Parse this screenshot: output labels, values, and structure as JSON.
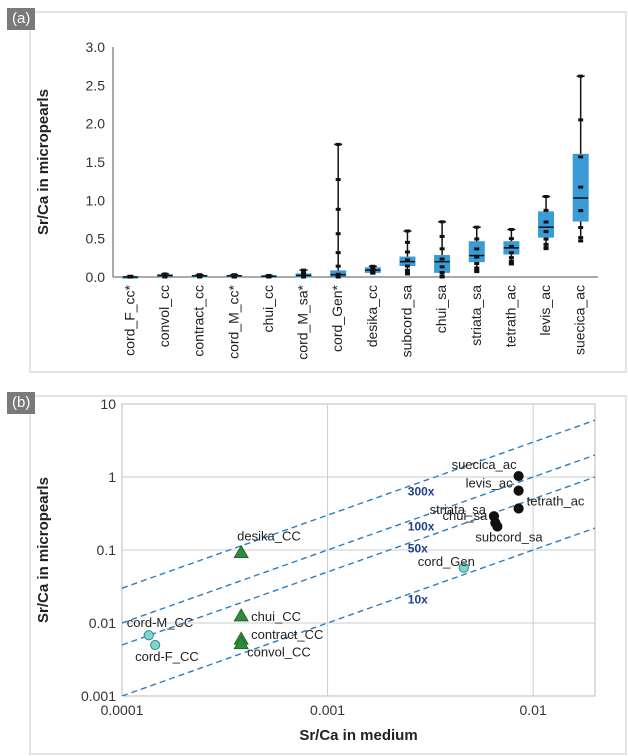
{
  "chart_data": [
    {
      "panel_label": "(a)",
      "type": "box",
      "ylabel": "Sr/Ca in micropearls",
      "ylim": [
        0,
        3.0
      ],
      "yticks": [
        "0.0",
        "0.5",
        "1.0",
        "1.5",
        "2.0",
        "2.5",
        "3.0"
      ],
      "grid": false,
      "color": "#3b9bd6",
      "categories": [
        "cord_F_cc*",
        "convol_cc",
        "contract_cc",
        "cord_M_cc*",
        "chui_cc",
        "cord_M_sa*",
        "cord_Gen*",
        "desika_cc",
        "subcord_sa",
        "chui_sa",
        "striata_sa",
        "tetrath_ac",
        "levis_ac",
        "suecica_ac"
      ],
      "boxes": [
        {
          "min": 0.0,
          "q1": 0.0,
          "median": 0.0,
          "q3": 0.005,
          "max": 0.01
        },
        {
          "min": 0.0,
          "q1": 0.01,
          "median": 0.02,
          "q3": 0.03,
          "max": 0.04
        },
        {
          "min": 0.0,
          "q1": 0.01,
          "median": 0.015,
          "q3": 0.02,
          "max": 0.03
        },
        {
          "min": 0.0,
          "q1": 0.01,
          "median": 0.015,
          "q3": 0.02,
          "max": 0.03
        },
        {
          "min": 0.0,
          "q1": 0.005,
          "median": 0.01,
          "q3": 0.015,
          "max": 0.02
        },
        {
          "min": 0.0,
          "q1": 0.0,
          "median": 0.02,
          "q3": 0.04,
          "max": 0.09
        },
        {
          "min": 0.0,
          "q1": 0.01,
          "median": 0.03,
          "q3": 0.08,
          "max": 1.73
        },
        {
          "min": 0.05,
          "q1": 0.06,
          "median": 0.09,
          "q3": 0.12,
          "max": 0.14
        },
        {
          "min": 0.04,
          "q1": 0.15,
          "median": 0.2,
          "q3": 0.26,
          "max": 0.6
        },
        {
          "min": 0.0,
          "q1": 0.06,
          "median": 0.2,
          "q3": 0.28,
          "max": 0.72
        },
        {
          "min": 0.07,
          "q1": 0.2,
          "median": 0.28,
          "q3": 0.46,
          "max": 0.65
        },
        {
          "min": 0.17,
          "q1": 0.3,
          "median": 0.38,
          "q3": 0.46,
          "max": 0.62
        },
        {
          "min": 0.37,
          "q1": 0.52,
          "median": 0.65,
          "q3": 0.85,
          "max": 1.05
        },
        {
          "min": 0.47,
          "q1": 0.73,
          "median": 1.03,
          "q3": 1.6,
          "max": 2.62
        }
      ]
    },
    {
      "panel_label": "(b)",
      "type": "scatter",
      "xlabel": "Sr/Ca in medium",
      "ylabel": "Sr/Ca in micropearls",
      "xscale": "log",
      "yscale": "log",
      "xlim": [
        0.0001,
        0.02
      ],
      "ylim": [
        0.001,
        10
      ],
      "xticks": [
        "0.0001",
        "0.001",
        "0.01"
      ],
      "yticks": [
        "0.001",
        "0.01",
        "0.1",
        "1",
        "10"
      ],
      "grid": true,
      "reference_lines": [
        {
          "label": "300x",
          "factor": 300
        },
        {
          "label": "100x",
          "factor": 100
        },
        {
          "label": "50x",
          "factor": 50
        },
        {
          "label": "10x",
          "factor": 10
        }
      ],
      "series": [
        {
          "marker": "triangle",
          "color": "#2e8b3a",
          "points": [
            {
              "label": "desika_CC",
              "x": 0.00038,
              "y": 0.092
            },
            {
              "label": "chui_CC",
              "x": 0.00038,
              "y": 0.0125
            },
            {
              "label": "contract_CC",
              "x": 0.00038,
              "y": 0.006
            },
            {
              "label": "convol_CC",
              "x": 0.00038,
              "y": 0.0052
            }
          ]
        },
        {
          "marker": "circle",
          "color": "#7fd3cf",
          "points": [
            {
              "label": "cord-M_CC",
              "x": 0.000135,
              "y": 0.0068
            },
            {
              "label": "cord-F_CC",
              "x": 0.000145,
              "y": 0.005
            },
            {
              "label": "cord_Gen",
              "x": 0.0046,
              "y": 0.057
            }
          ]
        },
        {
          "marker": "circle",
          "color": "#111111",
          "points": [
            {
              "label": "suecica_ac",
              "x": 0.0085,
              "y": 1.03
            },
            {
              "label": "levis_ac",
              "x": 0.0085,
              "y": 0.65
            },
            {
              "label": "tetrath_ac",
              "x": 0.0085,
              "y": 0.37
            },
            {
              "label": "striata_sa",
              "x": 0.00645,
              "y": 0.29
            },
            {
              "label": "chui_sa",
              "x": 0.00655,
              "y": 0.235
            },
            {
              "label": "subcord_sa",
              "x": 0.0067,
              "y": 0.21
            }
          ]
        }
      ]
    }
  ]
}
